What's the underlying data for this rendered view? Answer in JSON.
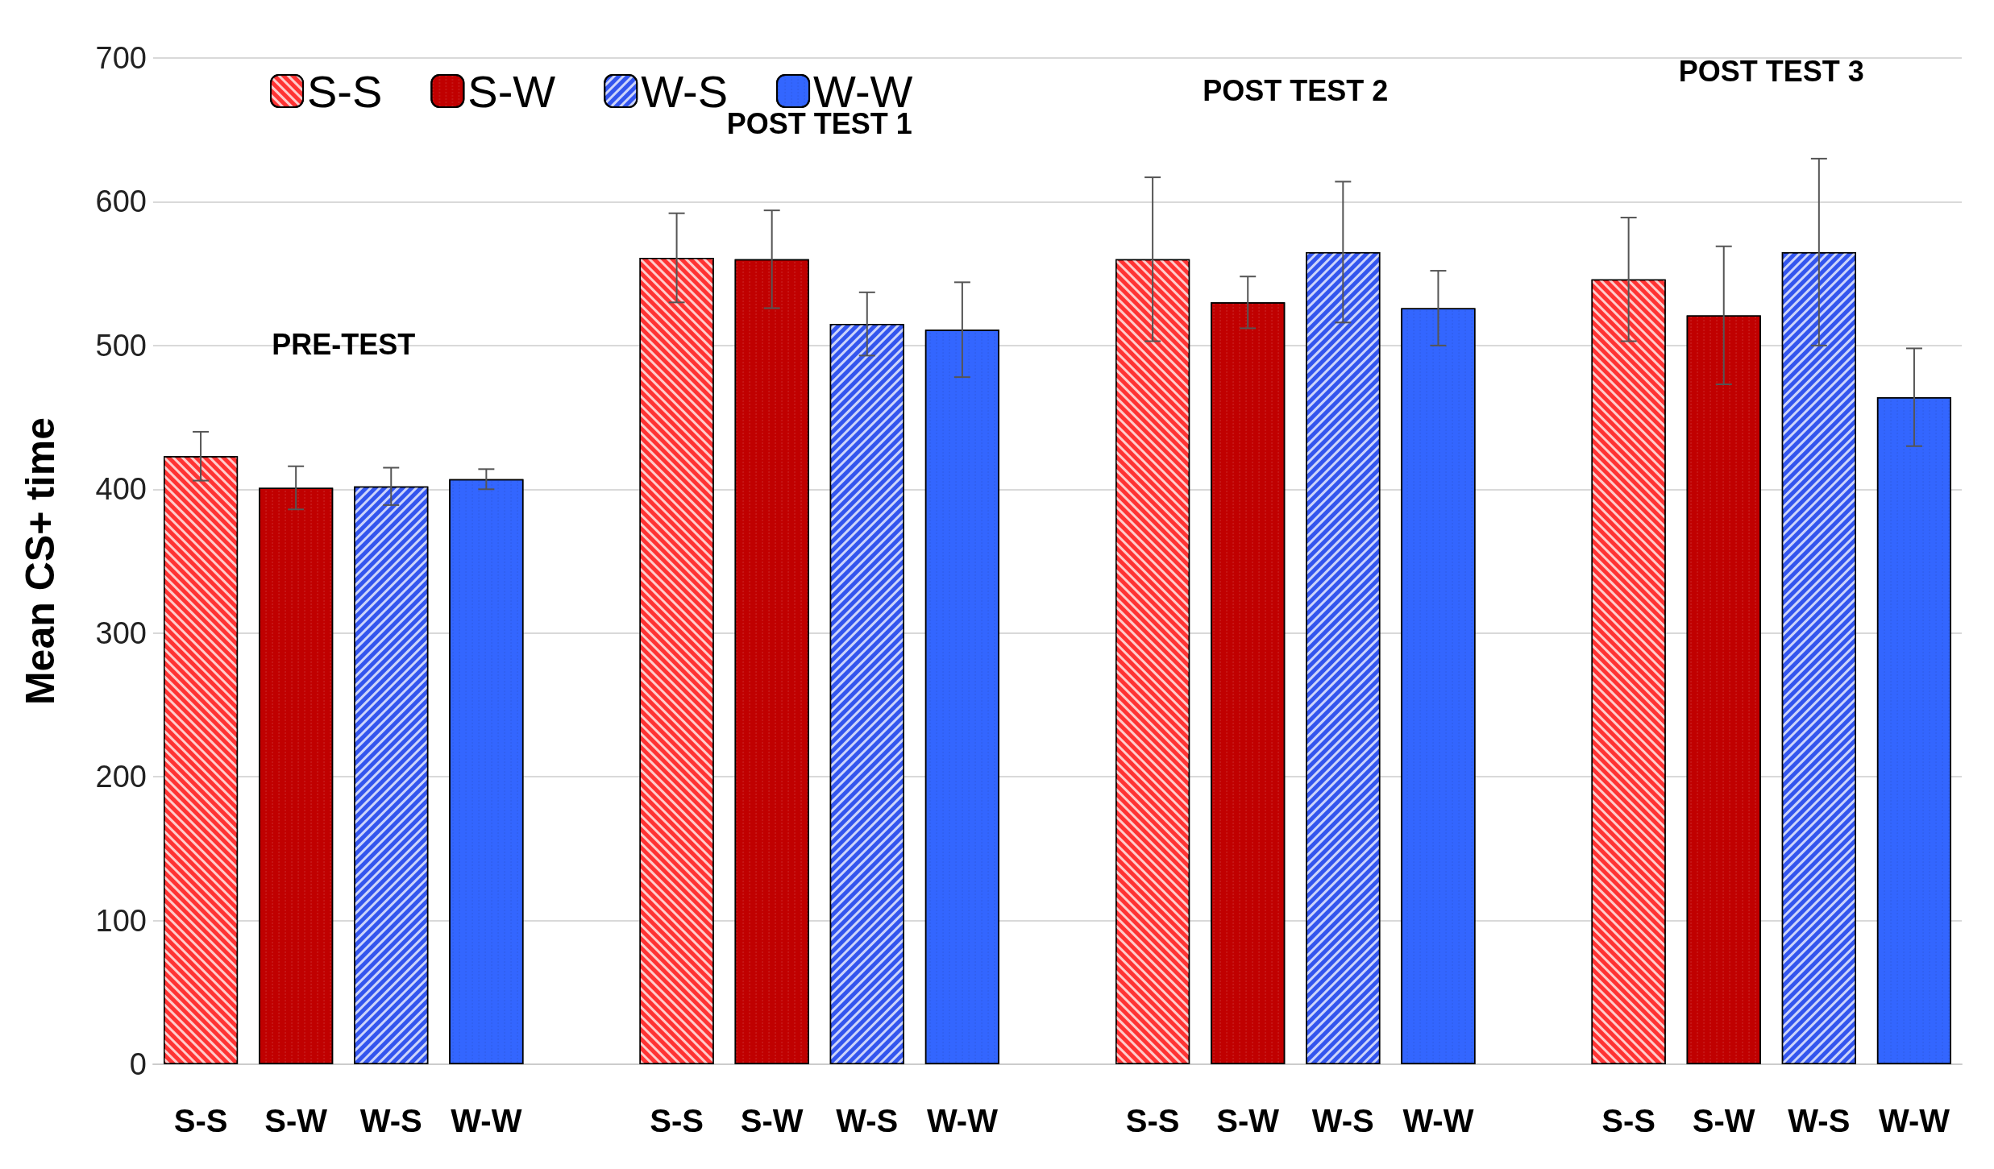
{
  "chart_data": {
    "type": "bar",
    "ylabel": "Mean CS+ time",
    "categories": [
      "S-S",
      "S-W",
      "W-S",
      "W-W",
      null,
      "S-S",
      "S-W",
      "W-S",
      "W-W",
      null,
      "S-S",
      "S-W",
      "W-S",
      "W-W",
      null,
      "S-S",
      "S-W",
      "W-S",
      "W-W"
    ],
    "series": [
      {
        "name": "S-S",
        "color": "#ff3333",
        "values": [
          423,
          null,
          null,
          null,
          null,
          561,
          null,
          null,
          null,
          null,
          560,
          null,
          null,
          null,
          null,
          546,
          null,
          null,
          null
        ],
        "errors": [
          17,
          null,
          null,
          null,
          null,
          31,
          null,
          null,
          null,
          null,
          57,
          null,
          null,
          null,
          null,
          43,
          null,
          null,
          null
        ]
      },
      {
        "name": "S-W",
        "color": "#c00000",
        "values": [
          null,
          401,
          null,
          null,
          null,
          null,
          560,
          null,
          null,
          null,
          null,
          530,
          null,
          null,
          null,
          null,
          521,
          null,
          null
        ],
        "errors": [
          null,
          15,
          null,
          null,
          null,
          null,
          34,
          null,
          null,
          null,
          null,
          18,
          null,
          null,
          null,
          null,
          48,
          null,
          null
        ]
      },
      {
        "name": "W-S",
        "color": "#3355ee",
        "values": [
          null,
          null,
          402,
          null,
          null,
          null,
          null,
          515,
          null,
          null,
          null,
          null,
          565,
          null,
          null,
          null,
          null,
          565,
          null
        ],
        "errors": [
          null,
          null,
          13,
          null,
          null,
          null,
          null,
          22,
          null,
          null,
          null,
          null,
          49,
          null,
          null,
          null,
          null,
          65,
          null
        ]
      },
      {
        "name": "W-W",
        "color": "#3366ff",
        "values": [
          null,
          null,
          null,
          407,
          null,
          null,
          null,
          null,
          511,
          null,
          null,
          null,
          null,
          526,
          null,
          null,
          null,
          null,
          464
        ],
        "errors": [
          null,
          null,
          null,
          7,
          null,
          null,
          null,
          null,
          33,
          null,
          null,
          null,
          null,
          26,
          null,
          null,
          null,
          null,
          34
        ]
      }
    ],
    "annotations": [
      "PRE-TEST",
      "POST TEST 1",
      "POST TEST 2",
      "POST TEST 3"
    ],
    "ylim": [
      0,
      700
    ],
    "yticks": [
      0,
      100,
      200,
      300,
      400,
      500,
      600,
      700
    ],
    "grid": "y",
    "legend": "top left"
  }
}
